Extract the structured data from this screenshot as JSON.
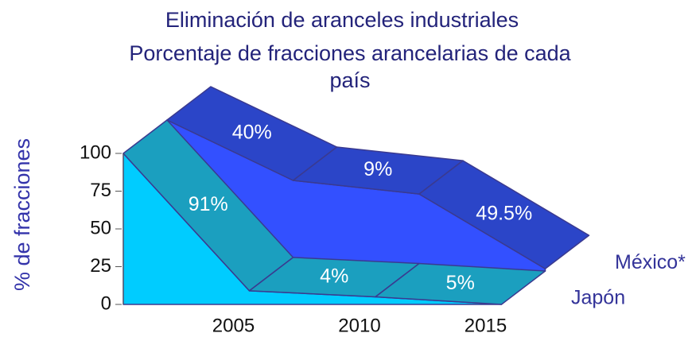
{
  "chart_data": {
    "type": "area3d",
    "title": "Eliminación de aranceles industriales",
    "subtitle": "Porcentaje de fracciones arancelarias de cada país",
    "y_label": "% de fracciones",
    "categories": [
      "2005",
      "2010",
      "2015"
    ],
    "ylim": [
      0,
      100
    ],
    "yticks": [
      0,
      25,
      50,
      75,
      100
    ],
    "series": [
      {
        "name": "Japón",
        "start": 100,
        "values": [
          91,
          4,
          5
        ],
        "value_labels": [
          "91%",
          "4%",
          "5%"
        ],
        "color": "#1b9fbf",
        "face_color": "#00ccff"
      },
      {
        "name": "México*",
        "start": 100,
        "values": [
          40,
          9,
          49.5
        ],
        "value_labels": [
          "40%",
          "9%",
          "49.5%"
        ],
        "color": "#2b45c8",
        "face_color": "#3350ff"
      }
    ]
  }
}
